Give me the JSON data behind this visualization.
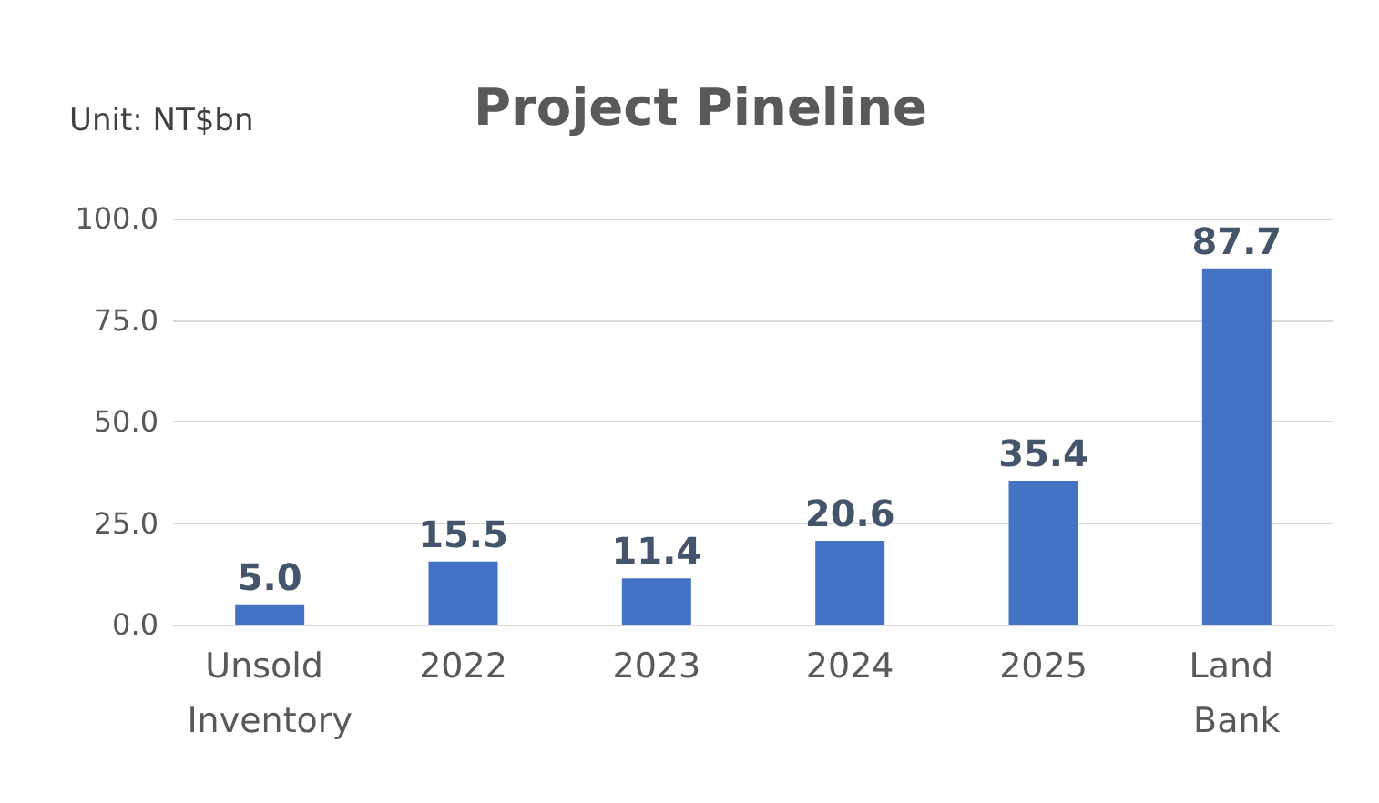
{
  "chart_data": {
    "type": "bar",
    "title": "Project Pineline",
    "annotations": [
      "Unit: NT$bn"
    ],
    "categories": [
      "Unsold Inventory",
      "2022",
      "2023",
      "2024",
      "2025",
      "Land Bank"
    ],
    "values": [
      5.0,
      15.5,
      11.4,
      20.6,
      35.4,
      87.7
    ],
    "value_labels": [
      "5.0",
      "15.5",
      "11.4",
      "20.6",
      "35.4",
      "87.7"
    ],
    "color": "#4472c4",
    "ylim": [
      0,
      100
    ],
    "yticks": [
      {
        "value": 0,
        "label": "0.0"
      },
      {
        "value": 25,
        "label": "25.0"
      },
      {
        "value": 50,
        "label": "50.0"
      },
      {
        "value": 75,
        "label": "75.0"
      },
      {
        "value": 100,
        "label": "100.0"
      }
    ],
    "grid": "y"
  }
}
